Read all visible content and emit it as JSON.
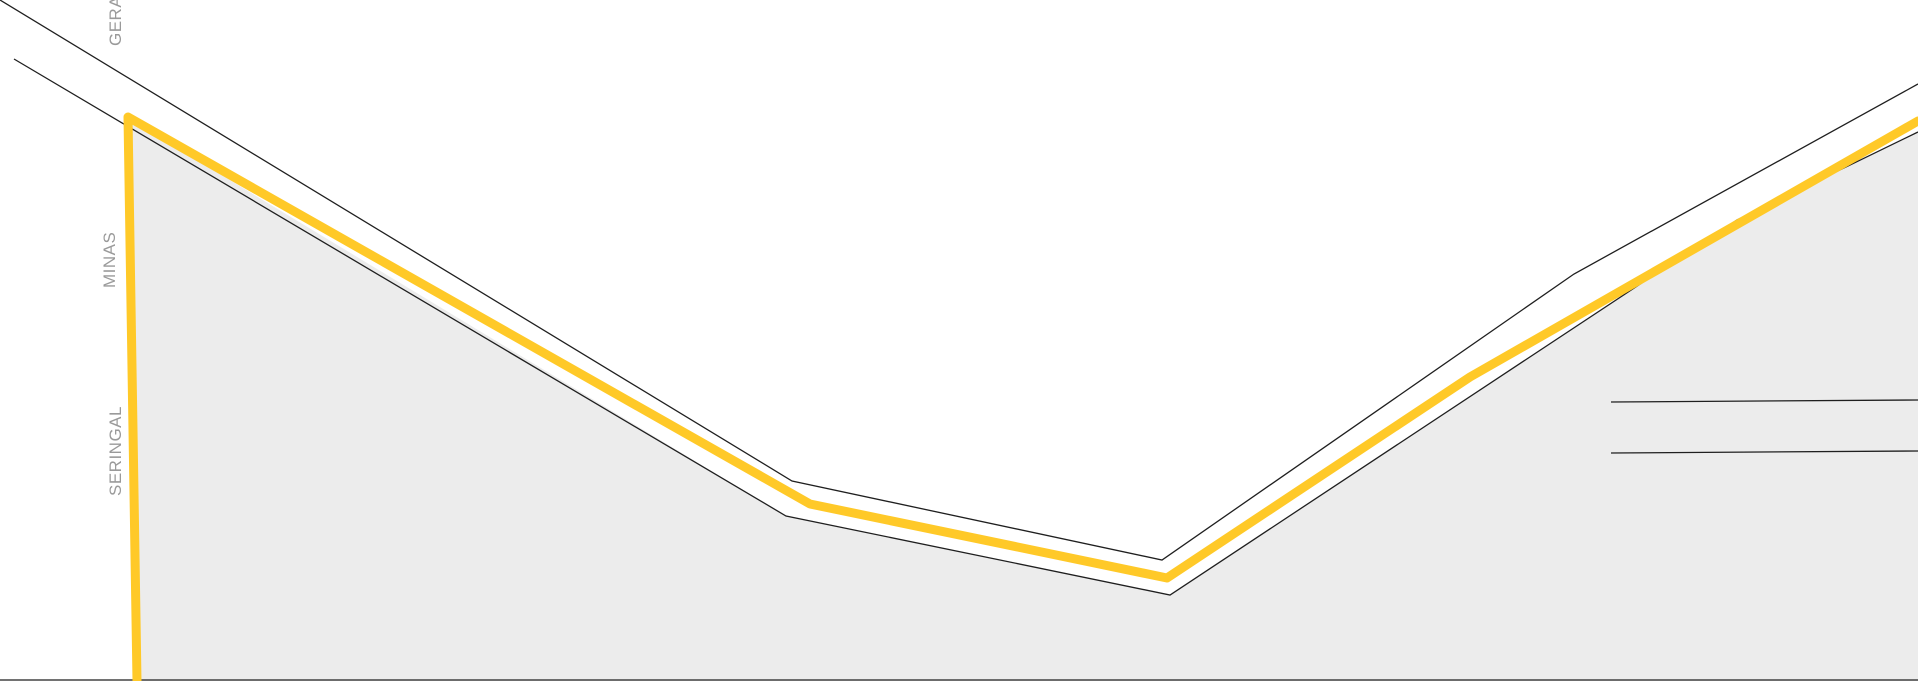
{
  "map": {
    "street_labels": {
      "gerais": "GERAIS",
      "minas": "MINAS",
      "seringal": "SERINGAL"
    },
    "colors": {
      "background": "#ffffff",
      "land_fill": "#ececec",
      "road_line": "#1f1f1f",
      "route": "#ffc928",
      "label": "#9a9a9a"
    },
    "route_icon": "route-path"
  }
}
